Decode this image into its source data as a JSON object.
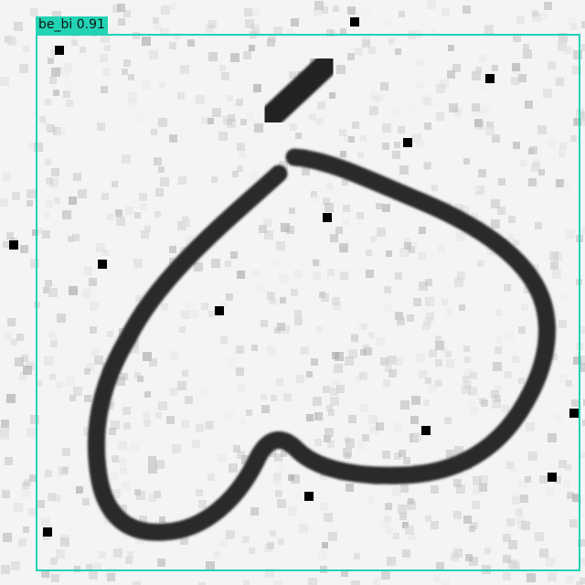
{
  "image": {
    "background_color": "#f4f4f4",
    "ink_color": "#2b2b2b",
    "noise_color": "#000000"
  },
  "detection": {
    "label": "be_bi 0.91",
    "class_name": "be_bi",
    "confidence": 0.91,
    "box_color": "#22d3b4",
    "label_text_color": "#111111"
  }
}
